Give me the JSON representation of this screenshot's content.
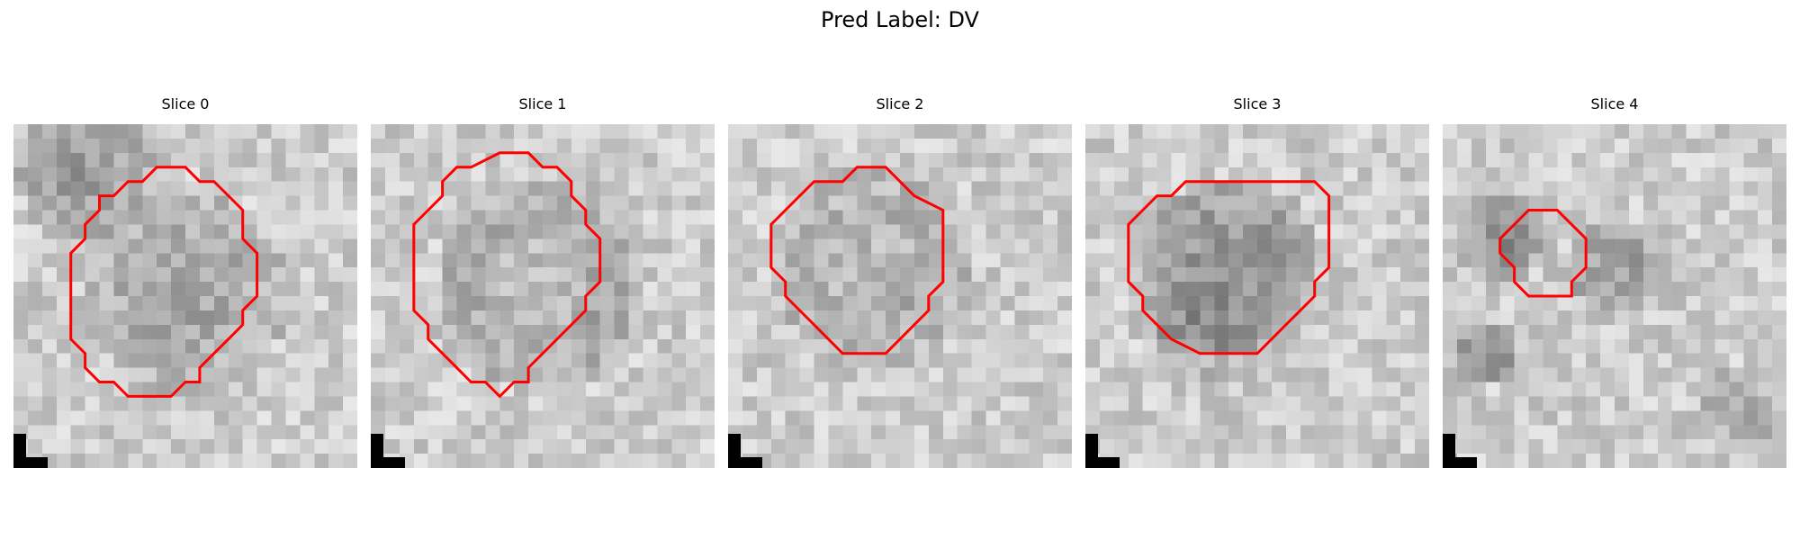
{
  "figure": {
    "title": "Pred Label: DV"
  },
  "colors": {
    "contour": "#ff0000",
    "background": "#ffffff",
    "marker": "#000000"
  },
  "slices": [
    {
      "title": "Slice 0",
      "contour": [
        [
          10,
          3
        ],
        [
          12,
          3
        ],
        [
          13,
          4
        ],
        [
          14,
          4
        ],
        [
          15,
          5
        ],
        [
          16,
          6
        ],
        [
          16,
          8
        ],
        [
          17,
          9
        ],
        [
          17,
          12
        ],
        [
          16,
          13
        ],
        [
          16,
          14
        ],
        [
          15,
          15
        ],
        [
          14,
          16
        ],
        [
          13,
          17
        ],
        [
          13,
          18
        ],
        [
          12,
          18
        ],
        [
          11,
          19
        ],
        [
          8,
          19
        ],
        [
          7,
          18
        ],
        [
          6,
          18
        ],
        [
          5,
          17
        ],
        [
          5,
          16
        ],
        [
          4,
          15
        ],
        [
          4,
          9
        ],
        [
          5,
          8
        ],
        [
          5,
          7
        ],
        [
          6,
          6
        ],
        [
          6,
          5
        ],
        [
          7,
          5
        ],
        [
          8,
          4
        ],
        [
          9,
          4
        ]
      ]
    },
    {
      "title": "Slice 1",
      "contour": [
        [
          9,
          2
        ],
        [
          11,
          2
        ],
        [
          12,
          3
        ],
        [
          13,
          3
        ],
        [
          14,
          4
        ],
        [
          14,
          5
        ],
        [
          15,
          6
        ],
        [
          15,
          7
        ],
        [
          16,
          8
        ],
        [
          16,
          11
        ],
        [
          15,
          12
        ],
        [
          15,
          13
        ],
        [
          13,
          15
        ],
        [
          12,
          16
        ],
        [
          11,
          17
        ],
        [
          11,
          18
        ],
        [
          10,
          18
        ],
        [
          9,
          19
        ],
        [
          8,
          18
        ],
        [
          7,
          18
        ],
        [
          6,
          17
        ],
        [
          5,
          16
        ],
        [
          4,
          15
        ],
        [
          4,
          14
        ],
        [
          3,
          13
        ],
        [
          3,
          7
        ],
        [
          4,
          6
        ],
        [
          5,
          5
        ],
        [
          5,
          4
        ],
        [
          6,
          3
        ],
        [
          7,
          3
        ]
      ]
    },
    {
      "title": "Slice 2",
      "contour": [
        [
          9,
          3
        ],
        [
          11,
          3
        ],
        [
          12,
          4
        ],
        [
          13,
          5
        ],
        [
          15,
          6
        ],
        [
          15,
          11
        ],
        [
          14,
          12
        ],
        [
          14,
          13
        ],
        [
          13,
          14
        ],
        [
          12,
          15
        ],
        [
          11,
          16
        ],
        [
          8,
          16
        ],
        [
          7,
          15
        ],
        [
          6,
          14
        ],
        [
          5,
          13
        ],
        [
          4,
          12
        ],
        [
          4,
          11
        ],
        [
          3,
          10
        ],
        [
          3,
          7
        ],
        [
          4,
          6
        ],
        [
          5,
          5
        ],
        [
          6,
          4
        ],
        [
          8,
          4
        ]
      ]
    },
    {
      "title": "Slice 3",
      "contour": [
        [
          9,
          4
        ],
        [
          16,
          4
        ],
        [
          17,
          5
        ],
        [
          17,
          10
        ],
        [
          16,
          11
        ],
        [
          16,
          12
        ],
        [
          15,
          13
        ],
        [
          14,
          14
        ],
        [
          13,
          15
        ],
        [
          12,
          16
        ],
        [
          8,
          16
        ],
        [
          6,
          15
        ],
        [
          5,
          14
        ],
        [
          4,
          13
        ],
        [
          4,
          12
        ],
        [
          3,
          11
        ],
        [
          3,
          7
        ],
        [
          4,
          6
        ],
        [
          5,
          5
        ],
        [
          6,
          5
        ],
        [
          7,
          4
        ]
      ]
    },
    {
      "title": "Slice 4",
      "contour": [
        [
          7,
          6
        ],
        [
          8,
          6
        ],
        [
          9,
          7
        ],
        [
          10,
          8
        ],
        [
          10,
          10
        ],
        [
          9,
          11
        ],
        [
          9,
          12
        ],
        [
          7,
          12
        ],
        [
          6,
          12
        ],
        [
          5,
          11
        ],
        [
          5,
          10
        ],
        [
          4,
          9
        ],
        [
          4,
          8
        ],
        [
          5,
          7
        ],
        [
          6,
          6
        ]
      ]
    }
  ]
}
